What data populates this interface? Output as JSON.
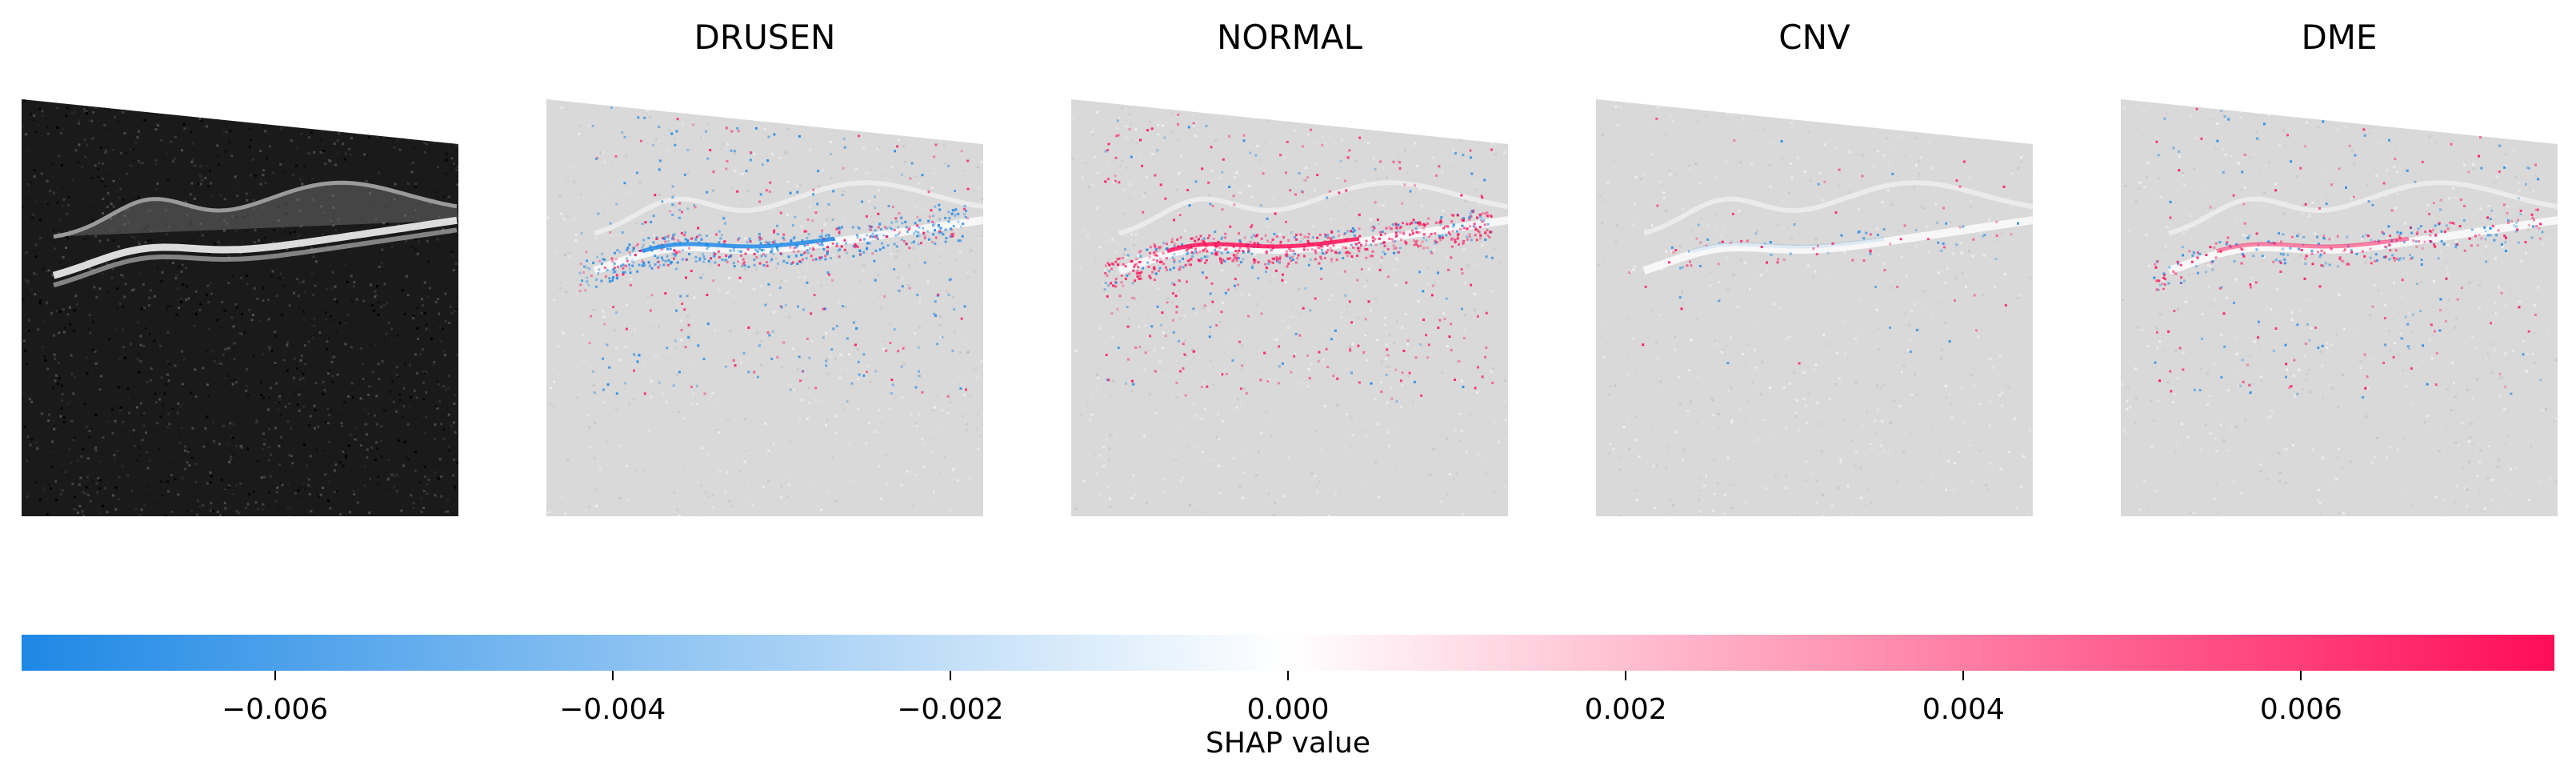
{
  "chart_data": {
    "type": "heatmap",
    "title": "",
    "panels": [
      {
        "name": "input-oct-image",
        "title": "",
        "kind": "input"
      },
      {
        "name": "shap-drusen",
        "title": "DRUSEN",
        "kind": "shap",
        "intensity": 0.9,
        "sign_bias": -0.15
      },
      {
        "name": "shap-normal",
        "title": "NORMAL",
        "kind": "shap",
        "intensity": 1.0,
        "sign_bias": 0.25
      },
      {
        "name": "shap-cnv",
        "title": "CNV",
        "kind": "shap",
        "intensity": 0.12,
        "sign_bias": 0.0
      },
      {
        "name": "shap-dme",
        "title": "DME",
        "kind": "shap",
        "intensity": 0.5,
        "sign_bias": 0.05
      }
    ],
    "colorbar": {
      "label": "SHAP value",
      "range": [
        -0.0075,
        0.0075
      ],
      "ticks": [
        -0.006,
        -0.004,
        -0.002,
        0.0,
        0.002,
        0.004,
        0.006
      ],
      "tick_labels": [
        "−0.006",
        "−0.004",
        "−0.002",
        "0.000",
        "0.002",
        "0.004",
        "0.006"
      ],
      "colors": {
        "negative": "#1e88e5",
        "zero": "#ffffff",
        "positive": "#ff0d57"
      }
    }
  }
}
